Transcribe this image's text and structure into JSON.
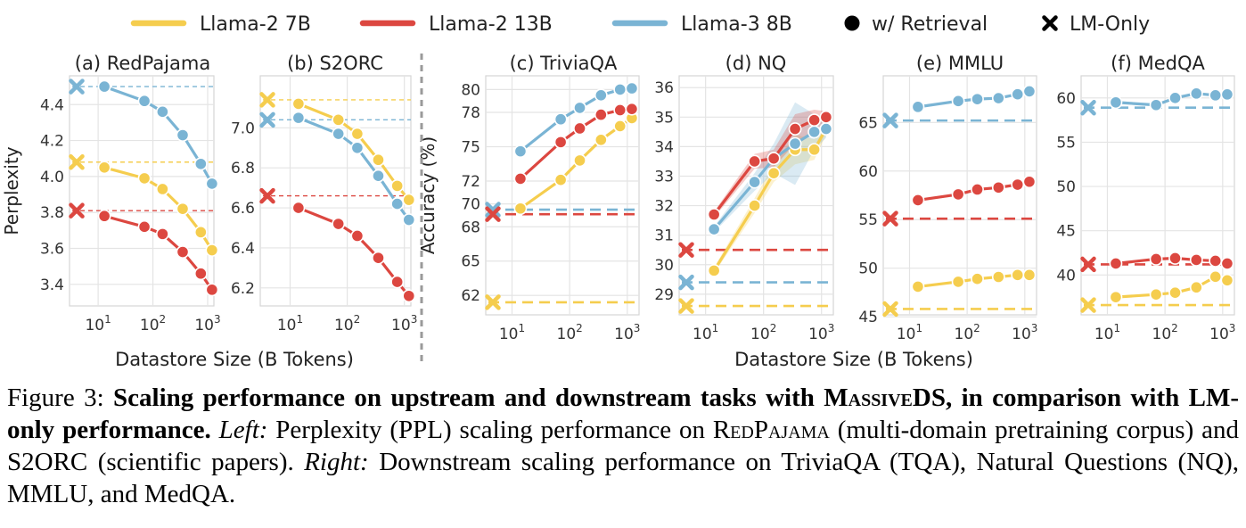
{
  "legend": [
    {
      "label": "Llama-2 7B",
      "kind": "line",
      "color": "#f5cd4e"
    },
    {
      "label": "Llama-2 13B",
      "kind": "line",
      "color": "#dc4740"
    },
    {
      "label": "Llama-3 8B",
      "kind": "line",
      "color": "#7ab4d4"
    },
    {
      "label": "w/ Retrieval",
      "kind": "dot",
      "color": "#000000"
    },
    {
      "label": "LM-Only",
      "kind": "cross",
      "color": "#000000"
    }
  ],
  "shared_xlabel_left": "Datastore Size (B Tokens)",
  "shared_xlabel_right": "Datastore Size (B Tokens)",
  "caption": {
    "fig": "Figure 3:",
    "bold1": "Scaling performance on upstream and downstream tasks with ",
    "bold_sc": "MassiveDS",
    "bold2": ", in comparison with LM-only performance.",
    "left_label": "Left:",
    "left_text1": " Perplexity (PPL) scaling performance on ",
    "left_sc": "RedPajama",
    "left_text2": " (multi-domain pretraining corpus) and S2ORC (scientific papers). ",
    "right_label": "Right:",
    "right_text": " Downstream scaling performance on TriviaQA (TQA), Natural Questions (NQ), MMLU, and MedQA."
  },
  "chart_data": [
    {
      "type": "line",
      "title": "(a) RedPajama",
      "ylabel": "Perplexity",
      "xscale": "log",
      "xticks": [
        "10^1",
        "10^2",
        "10^3"
      ],
      "xlim": [
        3,
        1300
      ],
      "ylim": [
        3.28,
        4.56
      ],
      "yticks": [
        3.4,
        3.6,
        3.8,
        4.0,
        4.2,
        4.4
      ],
      "ytick_labels": [
        "3.4",
        "3.6",
        "3.8",
        "4.0",
        "4.2",
        "4.4"
      ],
      "series": [
        {
          "name": "Llama-2 7B",
          "x": [
            13,
            70,
            150,
            350,
            750,
            1200
          ],
          "y": [
            4.05,
            3.99,
            3.93,
            3.82,
            3.69,
            3.59
          ],
          "lm_only": 4.08
        },
        {
          "name": "Llama-2 13B",
          "x": [
            13,
            70,
            150,
            350,
            750,
            1200
          ],
          "y": [
            3.78,
            3.72,
            3.68,
            3.58,
            3.46,
            3.37
          ],
          "lm_only": 3.81
        },
        {
          "name": "Llama-3 8B",
          "x": [
            13,
            70,
            150,
            350,
            750,
            1200
          ],
          "y": [
            4.5,
            4.42,
            4.36,
            4.23,
            4.07,
            3.96
          ],
          "lm_only": 4.5
        }
      ]
    },
    {
      "type": "line",
      "title": "(b) S2ORC",
      "ylabel": "",
      "xscale": "log",
      "xticks": [
        "10^1",
        "10^2",
        "10^3"
      ],
      "xlim": [
        3,
        1300
      ],
      "ylim": [
        6.11,
        7.26
      ],
      "yticks": [
        6.2,
        6.4,
        6.6,
        6.8,
        7.0
      ],
      "ytick_labels": [
        "6.2",
        "6.4",
        "6.6",
        "6.8",
        "7.0"
      ],
      "series": [
        {
          "name": "Llama-2 7B",
          "x": [
            14,
            70,
            150,
            350,
            750,
            1200
          ],
          "y": [
            7.12,
            7.04,
            6.97,
            6.84,
            6.71,
            6.64
          ],
          "lm_only": 7.14
        },
        {
          "name": "Llama-2 13B",
          "x": [
            14,
            70,
            150,
            350,
            750,
            1200
          ],
          "y": [
            6.6,
            6.52,
            6.46,
            6.35,
            6.23,
            6.16
          ],
          "lm_only": 6.66
        },
        {
          "name": "Llama-3 8B",
          "x": [
            14,
            70,
            150,
            350,
            750,
            1200
          ],
          "y": [
            7.05,
            6.97,
            6.9,
            6.76,
            6.62,
            6.54
          ],
          "lm_only": 7.04
        }
      ]
    },
    {
      "type": "line",
      "title": "(c) TriviaQA",
      "ylabel": "Accuracy (%)",
      "xscale": "log",
      "xticks": [
        "10^1",
        "10^2",
        "10^3"
      ],
      "xlim": [
        3.5,
        1600
      ],
      "ylim": [
        60.3,
        81.2
      ],
      "yticks": [
        62,
        65,
        68,
        70,
        72,
        75,
        78,
        80
      ],
      "ytick_labels": [
        "62",
        "65",
        "68",
        "70",
        "72",
        "75",
        "78",
        "80"
      ],
      "series": [
        {
          "name": "Llama-2 7B",
          "x": [
            14,
            70,
            150,
            350,
            750,
            1200
          ],
          "y": [
            69.6,
            72.1,
            73.8,
            75.6,
            76.8,
            77.5
          ],
          "lm_only": 61.4
        },
        {
          "name": "Llama-2 13B",
          "x": [
            14,
            70,
            150,
            350,
            750,
            1200
          ],
          "y": [
            72.2,
            75.4,
            76.6,
            77.8,
            78.2,
            78.3
          ],
          "lm_only": 69.1
        },
        {
          "name": "Llama-3 8B",
          "x": [
            14,
            70,
            150,
            350,
            750,
            1200
          ],
          "y": [
            74.6,
            77.4,
            78.4,
            79.5,
            80.0,
            80.1
          ],
          "lm_only": 69.5
        }
      ]
    },
    {
      "type": "line",
      "title": "(d) NQ",
      "ylabel": "",
      "xscale": "log",
      "xticks": [
        "10^1",
        "10^2",
        "10^3"
      ],
      "xlim": [
        3.5,
        1600
      ],
      "ylim": [
        28.3,
        36.4
      ],
      "yticks": [
        29,
        30,
        31,
        32,
        33,
        34,
        35,
        36
      ],
      "ytick_labels": [
        "29",
        "30",
        "31",
        "32",
        "33",
        "34",
        "35",
        "36"
      ],
      "series": [
        {
          "name": "Llama-2 7B",
          "x": [
            14,
            70,
            150,
            350,
            750,
            1200
          ],
          "y": [
            29.8,
            32.0,
            33.1,
            33.9,
            33.9,
            34.6
          ],
          "lm_only": 28.6
        },
        {
          "name": "Llama-2 13B",
          "x": [
            14,
            70,
            150,
            350,
            750,
            1200
          ],
          "y": [
            31.7,
            33.5,
            33.6,
            34.6,
            34.9,
            35.0
          ],
          "lm_only": 30.5
        },
        {
          "name": "Llama-3 8B",
          "x": [
            14,
            70,
            150,
            350,
            750,
            1200
          ],
          "y": [
            31.2,
            32.8,
            33.6,
            34.1,
            34.5,
            34.6
          ],
          "lm_only": 29.4
        }
      ]
    },
    {
      "type": "line",
      "title": "(e) MMLU",
      "ylabel": "",
      "xscale": "log",
      "xticks": [
        "10^1",
        "10^2",
        "10^3"
      ],
      "xlim": [
        3.5,
        1600
      ],
      "ylim": [
        45.2,
        69.8
      ],
      "yticks": [
        45,
        50,
        55,
        60,
        65
      ],
      "ytick_labels": [
        "45",
        "50",
        "55",
        "60",
        "65"
      ],
      "series": [
        {
          "name": "Llama-2 7B",
          "x": [
            14,
            70,
            150,
            350,
            750,
            1200
          ],
          "y": [
            48.1,
            48.6,
            48.9,
            49.1,
            49.3,
            49.3
          ],
          "lm_only": 45.8
        },
        {
          "name": "Llama-2 13B",
          "x": [
            14,
            70,
            150,
            350,
            750,
            1200
          ],
          "y": [
            57.0,
            57.6,
            58.1,
            58.3,
            58.6,
            58.9
          ],
          "lm_only": 55.1
        },
        {
          "name": "Llama-3 8B",
          "x": [
            14,
            70,
            150,
            350,
            750,
            1200
          ],
          "y": [
            66.6,
            67.2,
            67.4,
            67.5,
            67.9,
            68.2
          ],
          "lm_only": 65.2
        }
      ]
    },
    {
      "type": "line",
      "title": "(f) MedQA",
      "ylabel": "",
      "xscale": "log",
      "xticks": [
        "10^1",
        "10^2",
        "10^3"
      ],
      "xlim": [
        3.5,
        1600
      ],
      "ylim": [
        35.5,
        62.5
      ],
      "yticks": [
        40,
        45,
        50,
        55,
        60
      ],
      "ytick_labels": [
        "40",
        "45",
        "50",
        "55",
        "60"
      ],
      "series": [
        {
          "name": "Llama-2 7B",
          "x": [
            14,
            70,
            150,
            350,
            750,
            1200
          ],
          "y": [
            37.5,
            37.8,
            38.0,
            38.6,
            39.8,
            39.4
          ],
          "lm_only": 36.6
        },
        {
          "name": "Llama-2 13B",
          "x": [
            14,
            70,
            150,
            350,
            750,
            1200
          ],
          "y": [
            41.3,
            41.8,
            41.9,
            41.7,
            41.6,
            41.3
          ],
          "lm_only": 41.2
        },
        {
          "name": "Llama-3 8B",
          "x": [
            14,
            70,
            150,
            350,
            750,
            1200
          ],
          "y": [
            59.5,
            59.2,
            60.0,
            60.5,
            60.3,
            60.4
          ],
          "lm_only": 58.9
        }
      ]
    }
  ]
}
